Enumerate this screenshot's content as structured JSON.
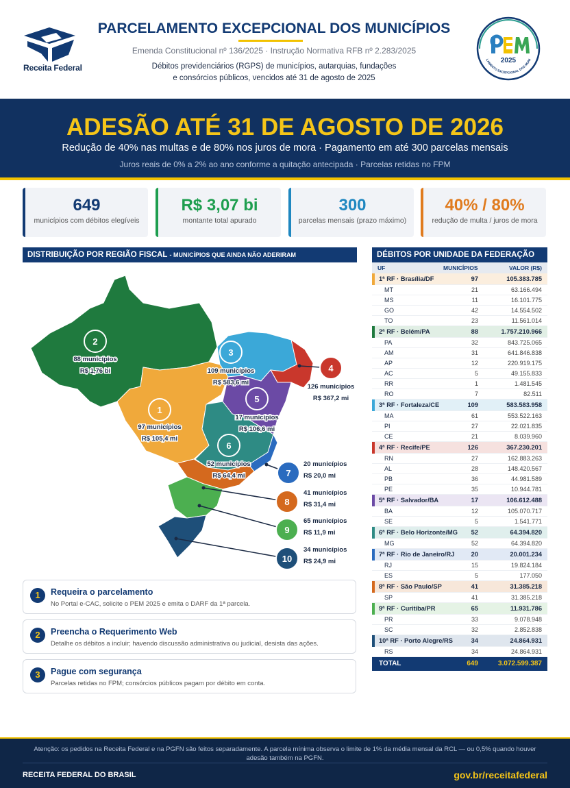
{
  "header": {
    "logo_text": "Receita Federal",
    "title": "PARCELAMENTO EXCEPCIONAL DOS MUNICÍPIOS",
    "subtitle": "Emenda Constitucional nº 136/2025  ·  Instrução Normativa RFB nº 2.283/2025",
    "desc_line1": "Débitos previdenciários (RGPS) de municípios, autarquias, fundações",
    "desc_line2": "e consórcios públicos, vencidos até 31 de agosto de 2025",
    "badge": {
      "acronym": "PEM",
      "year": "2025",
      "ring_text": "PARCELAMENTO EXCEPCIONAL DOS MUNICÍPIOS"
    }
  },
  "banner": {
    "headline": "ADESÃO ATÉ 31 DE AGOSTO DE 2026",
    "line2": "Redução de 40% nas multas e de 80% nos juros de mora  ·  Pagamento em até 300 parcelas mensais",
    "line3": "Juros reais de 0% a 2% ao ano conforme a quitação antecipada  ·  Parcelas retidas no FPM"
  },
  "kpis": [
    {
      "value": "649",
      "label": "municípios com débitos elegíveis",
      "color": "#123a73"
    },
    {
      "value": "R$ 3,07 bi",
      "label": "montante total apurado",
      "color": "#1e9e4f"
    },
    {
      "value": "300",
      "label": "parcelas mensais (prazo máximo)",
      "color": "#1f87c0"
    },
    {
      "value": "40% / 80%",
      "label": "redução de multa / juros de mora",
      "color": "#e07b1e"
    }
  ],
  "map_section": {
    "title": "DISTRIBUIÇÃO POR REGIÃO FISCAL",
    "subtitle": "- MUNICÍPIOS QUE AINDA NÃO ADERIRAM",
    "regions": [
      {
        "n": "1",
        "count": "97 municípios",
        "amount": "R$ 105,4 mi",
        "color": "#f0a93b"
      },
      {
        "n": "2",
        "count": "88 municípios",
        "amount": "R$ 1,76 bi",
        "color": "#1f7a3e"
      },
      {
        "n": "3",
        "count": "109 municípios",
        "amount": "R$ 583,6 mi",
        "color": "#3ba8d8"
      },
      {
        "n": "4",
        "count": "126 municípios",
        "amount": "R$ 367,2 mi",
        "color": "#c9372c"
      },
      {
        "n": "5",
        "count": "17 municípios",
        "amount": "R$ 106,6 mi",
        "color": "#6b4aa5"
      },
      {
        "n": "6",
        "count": "52 municípios",
        "amount": "R$ 64,4 mi",
        "color": "#2e8b84"
      },
      {
        "n": "7",
        "count": "20 municípios",
        "amount": "R$ 20,0 mi",
        "color": "#2a6bbf"
      },
      {
        "n": "8",
        "count": "41 municípios",
        "amount": "R$ 31,4 mi",
        "color": "#d4691e"
      },
      {
        "n": "9",
        "count": "65 municípios",
        "amount": "R$ 11,9 mi",
        "color": "#4caf50"
      },
      {
        "n": "10",
        "count": "34 municípios",
        "amount": "R$ 24,9 mi",
        "color": "#1e4f79"
      }
    ]
  },
  "steps": [
    {
      "n": "1",
      "title": "Requeira o parcelamento",
      "desc": "No Portal e-CAC, solicite o PEM 2025 e emita o DARF da 1ª parcela."
    },
    {
      "n": "2",
      "title": "Preencha o Requerimento Web",
      "desc": "Detalhe os débitos a incluir; havendo discussão administrativa ou judicial, desista das ações."
    },
    {
      "n": "3",
      "title": "Pague com segurança",
      "desc": "Parcelas retidas no FPM; consórcios públicos pagam por débito em conta."
    }
  ],
  "table": {
    "title": "DÉBITOS POR UNIDADE DA FEDERAÇÃO",
    "col_uf": "UF",
    "col_mun": "MUNICÍPIOS",
    "col_val": "VALOR (R$)",
    "groups": [
      {
        "name": "1ª RF · Brasília/DF",
        "count": "97",
        "value": "105.383.785",
        "color": "#f0a93b",
        "bg": "#fbeede",
        "rows": [
          [
            "MT",
            "21",
            "63.166.494"
          ],
          [
            "MS",
            "11",
            "16.101.775"
          ],
          [
            "GO",
            "42",
            "14.554.502"
          ],
          [
            "TO",
            "23",
            "11.561.014"
          ]
        ]
      },
      {
        "name": "2ª RF · Belém/PA",
        "count": "88",
        "value": "1.757.210.966",
        "color": "#1f7a3e",
        "bg": "#e1efe5",
        "rows": [
          [
            "PA",
            "32",
            "843.725.065"
          ],
          [
            "AM",
            "31",
            "641.846.838"
          ],
          [
            "AP",
            "12",
            "220.919.175"
          ],
          [
            "AC",
            "5",
            "49.155.833"
          ],
          [
            "RR",
            "1",
            "1.481.545"
          ],
          [
            "RO",
            "7",
            "82.511"
          ]
        ]
      },
      {
        "name": "3ª RF · Fortaleza/CE",
        "count": "109",
        "value": "583.583.958",
        "color": "#3ba8d8",
        "bg": "#e1f0f7",
        "rows": [
          [
            "MA",
            "61",
            "553.522.163"
          ],
          [
            "PI",
            "27",
            "22.021.835"
          ],
          [
            "CE",
            "21",
            "8.039.960"
          ]
        ]
      },
      {
        "name": "4ª RF · Recife/PE",
        "count": "126",
        "value": "367.230.201",
        "color": "#c9372c",
        "bg": "#f6e1df",
        "rows": [
          [
            "RN",
            "27",
            "162.883.263"
          ],
          [
            "AL",
            "28",
            "148.420.567"
          ],
          [
            "PB",
            "36",
            "44.981.589"
          ],
          [
            "PE",
            "35",
            "10.944.781"
          ]
        ]
      },
      {
        "name": "5ª RF · Salvador/BA",
        "count": "17",
        "value": "106.612.488",
        "color": "#6b4aa5",
        "bg": "#ebe5f3",
        "rows": [
          [
            "BA",
            "12",
            "105.070.717"
          ],
          [
            "SE",
            "5",
            "1.541.771"
          ]
        ]
      },
      {
        "name": "6ª RF · Belo Horizonte/MG",
        "count": "52",
        "value": "64.394.820",
        "color": "#2e8b84",
        "bg": "#e0efed",
        "rows": [
          [
            "MG",
            "52",
            "64.394.820"
          ]
        ]
      },
      {
        "name": "7ª RF · Rio de Janeiro/RJ",
        "count": "20",
        "value": "20.001.234",
        "color": "#2a6bbf",
        "bg": "#e1e9f5",
        "rows": [
          [
            "RJ",
            "15",
            "19.824.184"
          ],
          [
            "ES",
            "5",
            "177.050"
          ]
        ]
      },
      {
        "name": "8ª RF · São Paulo/SP",
        "count": "41",
        "value": "31.385.218",
        "color": "#d4691e",
        "bg": "#f7e7da",
        "rows": [
          [
            "SP",
            "41",
            "31.385.218"
          ]
        ]
      },
      {
        "name": "9ª RF · Curitiba/PR",
        "count": "65",
        "value": "11.931.786",
        "color": "#4caf50",
        "bg": "#e5f3e5",
        "rows": [
          [
            "PR",
            "33",
            "9.078.948"
          ],
          [
            "SC",
            "32",
            "2.852.838"
          ]
        ]
      },
      {
        "name": "10ª RF · Porto Alegre/RS",
        "count": "34",
        "value": "24.864.931",
        "color": "#1e4f79",
        "bg": "#dfe6ee",
        "rows": [
          [
            "RS",
            "34",
            "24.864.931"
          ]
        ]
      }
    ],
    "total_label": "TOTAL",
    "total_count": "649",
    "total_value": "3.072.599.387"
  },
  "footer": {
    "note": "Atenção: os pedidos na Receita Federal e na PGFN são feitos separadamente. A parcela mínima observa o limite de 1% da média mensal da RCL — ou 0,5% quando houver adesão também na PGFN.",
    "org": "RECEITA FEDERAL DO BRASIL",
    "url": "gov.br/receitafederal"
  }
}
